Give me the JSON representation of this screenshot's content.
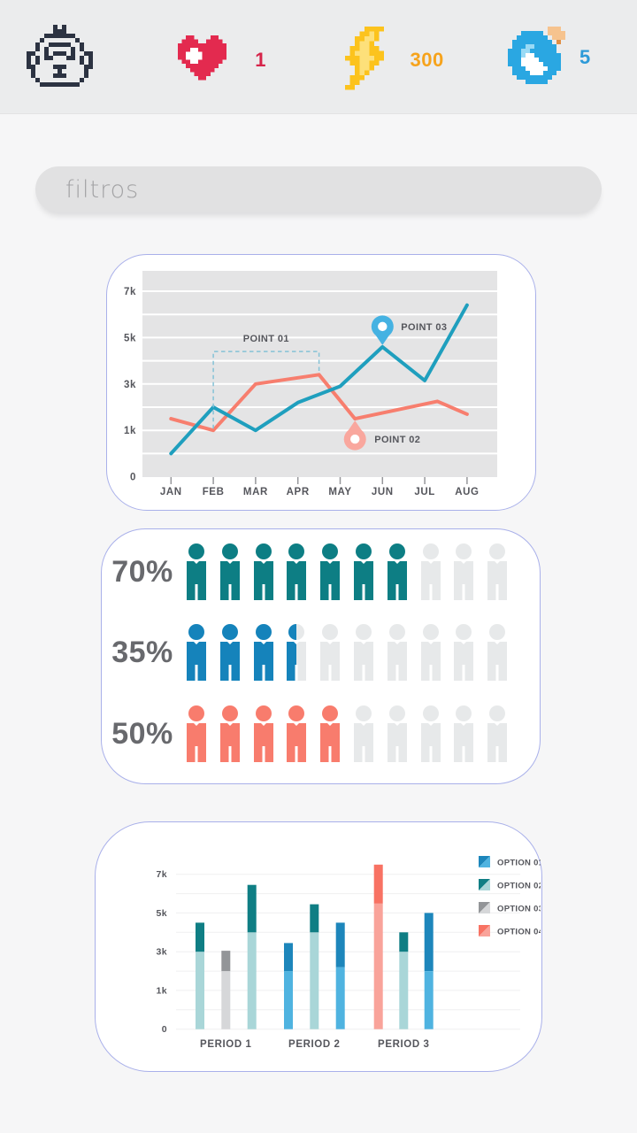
{
  "header": {
    "icons": {
      "avatar": "robot-icon",
      "health": "heart-icon",
      "energy": "lightning-icon",
      "potion": "water-orb-icon"
    },
    "stats": {
      "health": "1",
      "energy": "300",
      "potions": "5"
    },
    "stat_colors": {
      "health": "#d6244a",
      "energy": "#f6a31c",
      "potions": "#2d9ad8"
    }
  },
  "filter": {
    "placeholder": "filtros"
  },
  "chart_data": [
    {
      "type": "line",
      "x_labels": [
        "JAN",
        "FEB",
        "MAR",
        "APR",
        "MAY",
        "JUN",
        "JUL",
        "AUG"
      ],
      "y_tick_labels": [
        "0",
        "1k",
        "3k",
        "5k",
        "7k"
      ],
      "axis_note": "labels 0,1k,3k,5k,7k evenly spaced (decorative non-linear scale)",
      "plot_bg": "#e4e4e5",
      "grid_color": "#ffffff",
      "series": [
        {
          "name": "teal-line",
          "color": "#1f9fbe",
          "values_k": [
            0.5,
            2.0,
            1.0,
            2.2,
            2.9,
            4.6,
            3.15,
            6.4
          ]
        },
        {
          "name": "salmon-line",
          "color": "#f77e6e",
          "points_k": [
            [
              0,
              1.5
            ],
            [
              1,
              1.0
            ],
            [
              2,
              3.0
            ],
            [
              3.5,
              3.4
            ],
            [
              4.35,
              1.5
            ],
            [
              6.3,
              2.25
            ],
            [
              7,
              1.7
            ]
          ]
        }
      ],
      "annotations": [
        {
          "id": "point01",
          "label": "POINT 01",
          "kind": "dashed-bracket",
          "x_from_month": 1,
          "x_to_month": 3.5,
          "top_k": 4.4,
          "color": "#85c2d6"
        },
        {
          "id": "point02",
          "label": "POINT 02",
          "kind": "pin-up",
          "color": "#f9a79e",
          "series": 1,
          "vertex": 4
        },
        {
          "id": "point03",
          "label": "POINT 03",
          "kind": "pin-down",
          "color": "#45b2e2",
          "series": 0,
          "month": 5
        }
      ]
    },
    {
      "type": "pictograph",
      "unit_total": 10,
      "empty_color": "#e7e9ea",
      "rows": [
        {
          "label": "70%",
          "percent": 70,
          "filled_icons": 7,
          "color": "#0d7e84"
        },
        {
          "label": "35%",
          "percent": 35,
          "filled_icons": 3.5,
          "color": "#1583bb"
        },
        {
          "label": "50%",
          "percent": 50,
          "filled_icons": 5,
          "color": "#f87c6d"
        }
      ]
    },
    {
      "type": "bar",
      "stacked": true,
      "categories": [
        "PERIOD 1",
        "PERIOD 2",
        "PERIOD 3"
      ],
      "y_tick_labels": [
        "0",
        "1k",
        "3k",
        "5k",
        "7k"
      ],
      "legend": [
        {
          "label": "OPTION 01",
          "dark": "#1d86bb",
          "light": "#4fb3e0"
        },
        {
          "label": "OPTION 02",
          "dark": "#0f7e84",
          "light": "#a9d6d8"
        },
        {
          "label": "OPTION 03",
          "dark": "#939598",
          "light": "#d6d7d9"
        },
        {
          "label": "OPTION 04",
          "dark": "#f87263",
          "light": "#f9a39a"
        }
      ],
      "bars": [
        {
          "group": 0,
          "option": 1,
          "split_k": 3.0,
          "top_k": 4.5
        },
        {
          "group": 0,
          "option": 2,
          "split_k": 2.0,
          "top_k": 3.05
        },
        {
          "group": 0,
          "option": 1,
          "split_k": 4.0,
          "top_k": 6.45
        },
        {
          "group": 1,
          "option": 0,
          "split_k": 2.0,
          "top_k": 3.45
        },
        {
          "group": 1,
          "option": 1,
          "split_k": 4.0,
          "top_k": 5.45
        },
        {
          "group": 1,
          "option": 0,
          "split_k": 2.2,
          "top_k": 4.5
        },
        {
          "group": 2,
          "option": 3,
          "split_k": 5.5,
          "top_k": 7.5
        },
        {
          "group": 2,
          "option": 1,
          "split_k": 3.0,
          "top_k": 4.0
        },
        {
          "group": 2,
          "option": 0,
          "split_k": 2.0,
          "top_k": 5.0
        }
      ]
    }
  ]
}
